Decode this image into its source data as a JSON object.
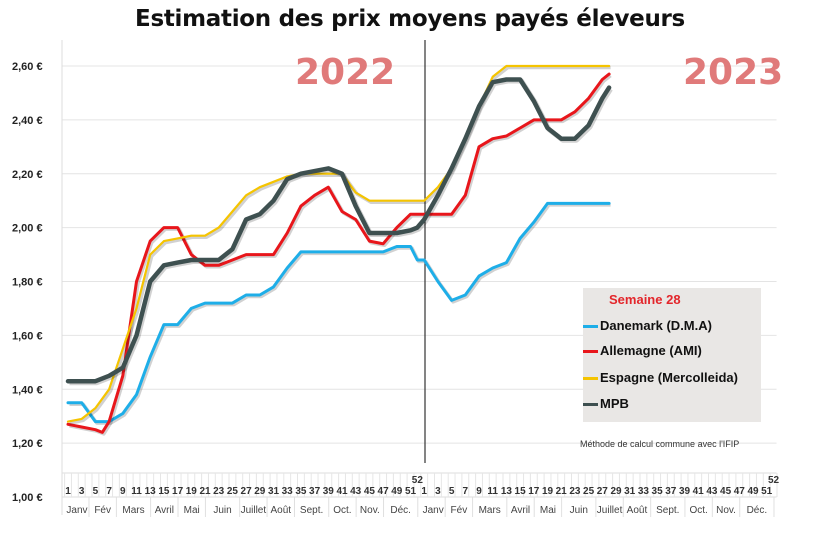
{
  "chart_data": {
    "type": "line",
    "title": "Estimation des prix moyens payés éleveurs",
    "xlabel": "",
    "ylabel": "",
    "ylim": [
      1.0,
      2.6
    ],
    "yticks": [
      "1,00 €",
      "1,20 €",
      "1,40 €",
      "1,60 €",
      "1,80 €",
      "2,00 €",
      "2,20 €",
      "2,40 €",
      "2,60 €"
    ],
    "ytick_values": [
      1.0,
      1.2,
      1.4,
      1.6,
      1.8,
      2.0,
      2.2,
      2.4,
      2.6
    ],
    "grid": true,
    "x_note": "x = consecutive week index; 1-52 = 2022 weeks 1-52, 53-104 = 2023 weeks 1-52",
    "year_labels": [
      "2022",
      "2023"
    ],
    "week_labels": [
      "1",
      "3",
      "5",
      "7",
      "9",
      "11",
      "13",
      "15",
      "17",
      "19",
      "21",
      "23",
      "25",
      "27",
      "29",
      "31",
      "33",
      "35",
      "37",
      "39",
      "41",
      "43",
      "45",
      "47",
      "49",
      "51",
      "52"
    ],
    "week_label_values": [
      1,
      3,
      5,
      7,
      9,
      11,
      13,
      15,
      17,
      19,
      21,
      23,
      25,
      27,
      29,
      31,
      33,
      35,
      37,
      39,
      41,
      43,
      45,
      47,
      49,
      51,
      52
    ],
    "months": [
      {
        "label": "Janv",
        "from": 1,
        "to": 4.5
      },
      {
        "label": "Fév",
        "from": 4.5,
        "to": 8.5
      },
      {
        "label": "Mars",
        "from": 8.5,
        "to": 13.5
      },
      {
        "label": "Avril",
        "from": 13.5,
        "to": 17.5
      },
      {
        "label": "Mai",
        "from": 17.5,
        "to": 21.5
      },
      {
        "label": "Juin",
        "from": 21.5,
        "to": 26.5
      },
      {
        "label": "Juillet",
        "from": 26.5,
        "to": 30.5
      },
      {
        "label": "Août",
        "from": 30.5,
        "to": 34.5
      },
      {
        "label": "Sept.",
        "from": 34.5,
        "to": 39.5
      },
      {
        "label": "Oct.",
        "from": 39.5,
        "to": 43.5
      },
      {
        "label": "Nov.",
        "from": 43.5,
        "to": 47.5
      },
      {
        "label": "Déc.",
        "from": 47.5,
        "to": 52.5
      }
    ],
    "legend_title": "Semaine 28",
    "legend_position": "bottom-right",
    "note": "Méthode de calcul commune avec l'IFIP",
    "series": [
      {
        "name": "Danemark (D.M.A)",
        "color": "#1eaee8",
        "points": [
          [
            1,
            1.35
          ],
          [
            3,
            1.35
          ],
          [
            5,
            1.28
          ],
          [
            7,
            1.28
          ],
          [
            9,
            1.31
          ],
          [
            11,
            1.38
          ],
          [
            13,
            1.52
          ],
          [
            15,
            1.64
          ],
          [
            17,
            1.64
          ],
          [
            19,
            1.7
          ],
          [
            21,
            1.72
          ],
          [
            23,
            1.72
          ],
          [
            25,
            1.72
          ],
          [
            27,
            1.75
          ],
          [
            29,
            1.75
          ],
          [
            31,
            1.78
          ],
          [
            33,
            1.85
          ],
          [
            35,
            1.91
          ],
          [
            37,
            1.91
          ],
          [
            39,
            1.91
          ],
          [
            41,
            1.91
          ],
          [
            43,
            1.91
          ],
          [
            45,
            1.91
          ],
          [
            47,
            1.91
          ],
          [
            49,
            1.93
          ],
          [
            51,
            1.93
          ],
          [
            52,
            1.88
          ],
          [
            53,
            1.88
          ],
          [
            55,
            1.8
          ],
          [
            57,
            1.73
          ],
          [
            59,
            1.75
          ],
          [
            61,
            1.82
          ],
          [
            63,
            1.85
          ],
          [
            65,
            1.87
          ],
          [
            67,
            1.96
          ],
          [
            69,
            2.02
          ],
          [
            71,
            2.09
          ],
          [
            73,
            2.09
          ],
          [
            75,
            2.09
          ],
          [
            77,
            2.09
          ],
          [
            79,
            2.09
          ],
          [
            80,
            2.09
          ]
        ]
      },
      {
        "name": "Allemagne (AMI)",
        "color": "#e8161b",
        "points": [
          [
            1,
            1.27
          ],
          [
            3,
            1.26
          ],
          [
            5,
            1.25
          ],
          [
            6,
            1.24
          ],
          [
            7,
            1.28
          ],
          [
            9,
            1.45
          ],
          [
            11,
            1.8
          ],
          [
            13,
            1.95
          ],
          [
            15,
            2.0
          ],
          [
            17,
            2.0
          ],
          [
            19,
            1.9
          ],
          [
            21,
            1.86
          ],
          [
            23,
            1.86
          ],
          [
            25,
            1.88
          ],
          [
            27,
            1.9
          ],
          [
            29,
            1.9
          ],
          [
            31,
            1.9
          ],
          [
            33,
            1.98
          ],
          [
            35,
            2.08
          ],
          [
            37,
            2.12
          ],
          [
            39,
            2.15
          ],
          [
            41,
            2.06
          ],
          [
            43,
            2.03
          ],
          [
            45,
            1.95
          ],
          [
            47,
            1.94
          ],
          [
            49,
            2.0
          ],
          [
            51,
            2.05
          ],
          [
            52,
            2.05
          ],
          [
            53,
            2.05
          ],
          [
            55,
            2.05
          ],
          [
            57,
            2.05
          ],
          [
            59,
            2.12
          ],
          [
            61,
            2.3
          ],
          [
            63,
            2.33
          ],
          [
            65,
            2.34
          ],
          [
            67,
            2.37
          ],
          [
            69,
            2.4
          ],
          [
            71,
            2.4
          ],
          [
            73,
            2.4
          ],
          [
            75,
            2.43
          ],
          [
            77,
            2.48
          ],
          [
            79,
            2.55
          ],
          [
            80,
            2.57
          ]
        ]
      },
      {
        "name": "Espagne (Mercolleida)",
        "color": "#f5c400",
        "points": [
          [
            1,
            1.28
          ],
          [
            3,
            1.29
          ],
          [
            5,
            1.33
          ],
          [
            7,
            1.4
          ],
          [
            9,
            1.55
          ],
          [
            11,
            1.7
          ],
          [
            13,
            1.9
          ],
          [
            15,
            1.95
          ],
          [
            17,
            1.96
          ],
          [
            19,
            1.97
          ],
          [
            21,
            1.97
          ],
          [
            23,
            2.0
          ],
          [
            25,
            2.06
          ],
          [
            27,
            2.12
          ],
          [
            29,
            2.15
          ],
          [
            31,
            2.17
          ],
          [
            33,
            2.19
          ],
          [
            35,
            2.2
          ],
          [
            37,
            2.2
          ],
          [
            39,
            2.2
          ],
          [
            41,
            2.2
          ],
          [
            43,
            2.13
          ],
          [
            45,
            2.1
          ],
          [
            47,
            2.1
          ],
          [
            49,
            2.1
          ],
          [
            51,
            2.1
          ],
          [
            52,
            2.1
          ],
          [
            53,
            2.1
          ],
          [
            55,
            2.15
          ],
          [
            57,
            2.22
          ],
          [
            59,
            2.33
          ],
          [
            61,
            2.45
          ],
          [
            63,
            2.56
          ],
          [
            65,
            2.6
          ],
          [
            67,
            2.6
          ],
          [
            69,
            2.6
          ],
          [
            71,
            2.6
          ],
          [
            73,
            2.6
          ],
          [
            75,
            2.6
          ],
          [
            77,
            2.6
          ],
          [
            79,
            2.6
          ],
          [
            80,
            2.6
          ]
        ]
      },
      {
        "name": "MPB",
        "color": "#3e5050",
        "points": [
          [
            1,
            1.43
          ],
          [
            3,
            1.43
          ],
          [
            5,
            1.43
          ],
          [
            7,
            1.45
          ],
          [
            9,
            1.48
          ],
          [
            11,
            1.6
          ],
          [
            13,
            1.8
          ],
          [
            15,
            1.86
          ],
          [
            17,
            1.87
          ],
          [
            19,
            1.88
          ],
          [
            21,
            1.88
          ],
          [
            23,
            1.88
          ],
          [
            25,
            1.92
          ],
          [
            27,
            2.03
          ],
          [
            29,
            2.05
          ],
          [
            31,
            2.1
          ],
          [
            33,
            2.18
          ],
          [
            35,
            2.2
          ],
          [
            37,
            2.21
          ],
          [
            39,
            2.22
          ],
          [
            41,
            2.2
          ],
          [
            43,
            2.08
          ],
          [
            45,
            1.98
          ],
          [
            47,
            1.98
          ],
          [
            49,
            1.98
          ],
          [
            51,
            1.99
          ],
          [
            52,
            2.0
          ],
          [
            53,
            2.03
          ],
          [
            55,
            2.12
          ],
          [
            57,
            2.22
          ],
          [
            59,
            2.33
          ],
          [
            61,
            2.45
          ],
          [
            63,
            2.54
          ],
          [
            65,
            2.55
          ],
          [
            67,
            2.55
          ],
          [
            69,
            2.47
          ],
          [
            71,
            2.37
          ],
          [
            73,
            2.33
          ],
          [
            75,
            2.33
          ],
          [
            77,
            2.38
          ],
          [
            79,
            2.48
          ],
          [
            80,
            2.52
          ]
        ]
      }
    ]
  }
}
